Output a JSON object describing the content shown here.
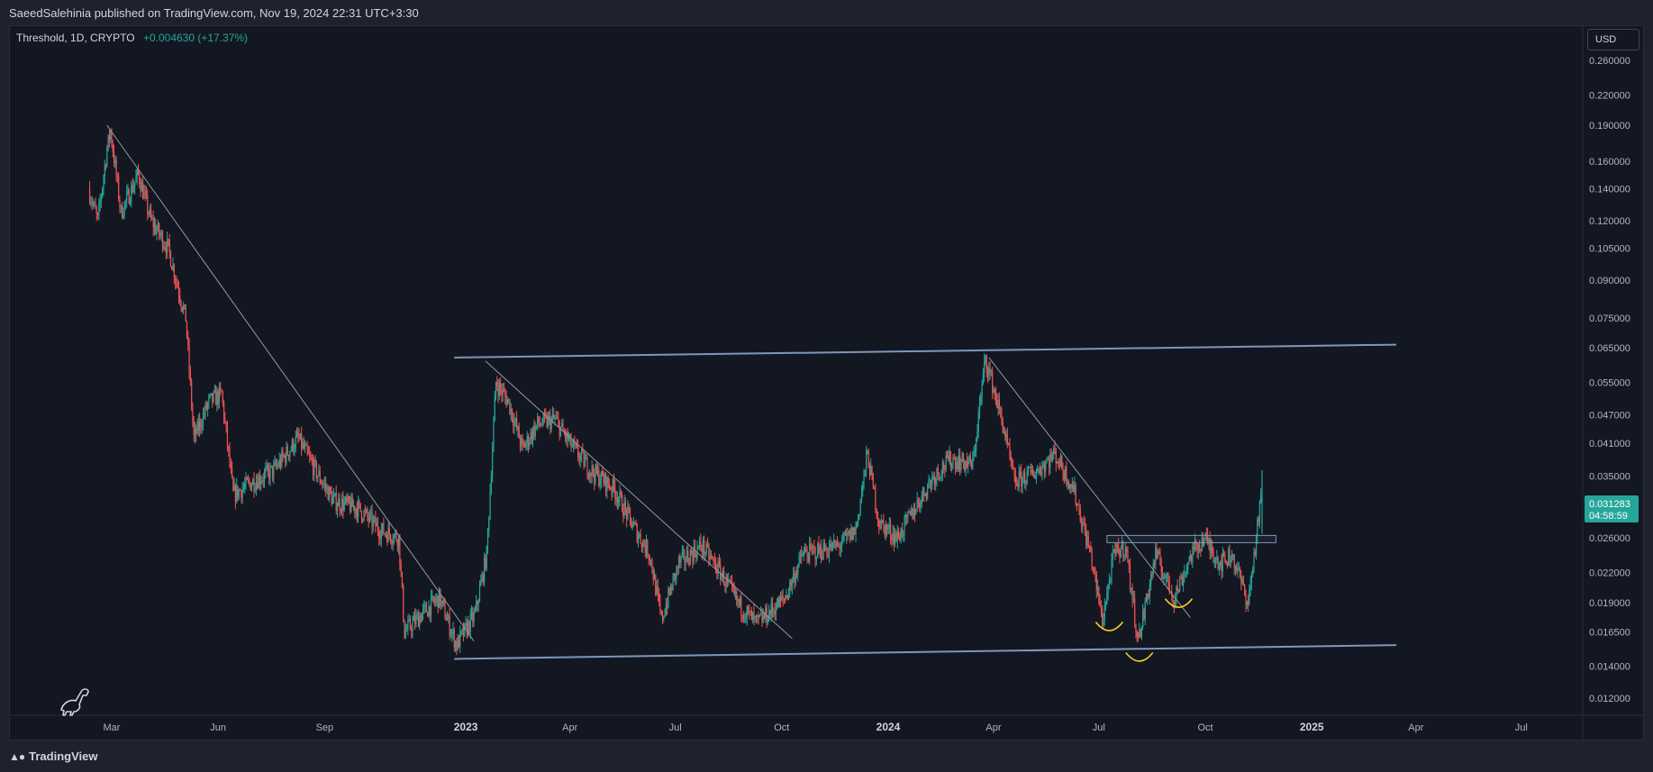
{
  "header": {
    "publish_line": "SaeedSalehinia published on TradingView.com, Nov 19, 2024 22:31 UTC+3:30"
  },
  "legend": {
    "symbol_line": "Threshold, 1D, CRYPTO",
    "change": "+0.004630 (+17.37%)"
  },
  "toolbar": {
    "currency": "USD"
  },
  "footer": {
    "brand": "TradingView"
  },
  "colors": {
    "background": "#131722",
    "up": "#26a69a",
    "down": "#ef5350",
    "channel": "#7e97b8",
    "trendline": "#9598a1",
    "arc": "#f7d31e"
  },
  "icons": [
    "dino-watermark-icon",
    "tradingview-logo-icon"
  ],
  "chart_data": {
    "type": "candlestick",
    "title": "Threshold, 1D, CRYPTO",
    "y_scale": "log",
    "currency": "USD",
    "ylim": [
      0.0115,
      0.28
    ],
    "y_ticks": [
      "0.260000",
      "0.220000",
      "0.190000",
      "0.160000",
      "0.140000",
      "0.120000",
      "0.105000",
      "0.090000",
      "0.075000",
      "0.065000",
      "0.055000",
      "0.047000",
      "0.041000",
      "0.035000",
      "0.026000",
      "0.022000",
      "0.019000",
      "0.016500",
      "0.014000",
      "0.012000"
    ],
    "x_ticks": [
      {
        "label": "Mar",
        "bold": false
      },
      {
        "label": "Jun",
        "bold": false
      },
      {
        "label": "Sep",
        "bold": false
      },
      {
        "label": "2023",
        "bold": true
      },
      {
        "label": "Apr",
        "bold": false
      },
      {
        "label": "Jul",
        "bold": false
      },
      {
        "label": "Oct",
        "bold": false
      },
      {
        "label": "2024",
        "bold": true
      },
      {
        "label": "Apr",
        "bold": false
      },
      {
        "label": "Jul",
        "bold": false
      },
      {
        "label": "Oct",
        "bold": false
      },
      {
        "label": "2025",
        "bold": true
      },
      {
        "label": "Apr",
        "bold": false
      },
      {
        "label": "Jul",
        "bold": false
      }
    ],
    "last_price": "0.031283",
    "countdown": "04:58:59",
    "price_path": [
      [
        "2022-02-10",
        0.14
      ],
      [
        "2022-02-18",
        0.12
      ],
      [
        "2022-02-26",
        0.17
      ],
      [
        "2022-03-01",
        0.185
      ],
      [
        "2022-03-10",
        0.125
      ],
      [
        "2022-03-25",
        0.15
      ],
      [
        "2022-04-05",
        0.12
      ],
      [
        "2022-04-20",
        0.105
      ],
      [
        "2022-05-05",
        0.075
      ],
      [
        "2022-05-12",
        0.042
      ],
      [
        "2022-05-25",
        0.05
      ],
      [
        "2022-06-05",
        0.052
      ],
      [
        "2022-06-15",
        0.032
      ],
      [
        "2022-07-01",
        0.034
      ],
      [
        "2022-07-20",
        0.036
      ],
      [
        "2022-08-10",
        0.042
      ],
      [
        "2022-08-25",
        0.036
      ],
      [
        "2022-09-10",
        0.031
      ],
      [
        "2022-10-01",
        0.03
      ],
      [
        "2022-10-20",
        0.027
      ],
      [
        "2022-11-05",
        0.026
      ],
      [
        "2022-11-10",
        0.0165
      ],
      [
        "2022-11-25",
        0.018
      ],
      [
        "2022-12-10",
        0.0195
      ],
      [
        "2022-12-25",
        0.0155
      ],
      [
        "2023-01-10",
        0.018
      ],
      [
        "2023-01-20",
        0.024
      ],
      [
        "2023-01-28",
        0.055
      ],
      [
        "2023-02-08",
        0.05
      ],
      [
        "2023-02-20",
        0.04
      ],
      [
        "2023-03-05",
        0.045
      ],
      [
        "2023-03-20",
        0.046
      ],
      [
        "2023-04-05",
        0.04
      ],
      [
        "2023-04-20",
        0.036
      ],
      [
        "2023-05-10",
        0.033
      ],
      [
        "2023-05-25",
        0.028
      ],
      [
        "2023-06-10",
        0.024
      ],
      [
        "2023-06-20",
        0.0175
      ],
      [
        "2023-07-05",
        0.023
      ],
      [
        "2023-07-25",
        0.025
      ],
      [
        "2023-08-10",
        0.022
      ],
      [
        "2023-08-25",
        0.019
      ],
      [
        "2023-09-10",
        0.0172
      ],
      [
        "2023-09-20",
        0.018
      ],
      [
        "2023-10-05",
        0.0195
      ],
      [
        "2023-10-20",
        0.024
      ],
      [
        "2023-11-05",
        0.0245
      ],
      [
        "2023-11-20",
        0.025
      ],
      [
        "2023-12-05",
        0.027
      ],
      [
        "2023-12-15",
        0.039
      ],
      [
        "2023-12-25",
        0.028
      ],
      [
        "2024-01-10",
        0.026
      ],
      [
        "2024-01-25",
        0.03
      ],
      [
        "2024-02-10",
        0.035
      ],
      [
        "2024-02-25",
        0.038
      ],
      [
        "2024-03-15",
        0.037
      ],
      [
        "2024-03-26",
        0.062
      ],
      [
        "2024-04-10",
        0.045
      ],
      [
        "2024-04-20",
        0.034
      ],
      [
        "2024-05-10",
        0.036
      ],
      [
        "2024-05-25",
        0.039
      ],
      [
        "2024-06-10",
        0.033
      ],
      [
        "2024-06-25",
        0.024
      ],
      [
        "2024-07-05",
        0.0175
      ],
      [
        "2024-07-15",
        0.024
      ],
      [
        "2024-07-25",
        0.025
      ],
      [
        "2024-08-05",
        0.0158
      ],
      [
        "2024-08-20",
        0.024
      ],
      [
        "2024-09-05",
        0.0195
      ],
      [
        "2024-09-20",
        0.024
      ],
      [
        "2024-10-01",
        0.026
      ],
      [
        "2024-10-15",
        0.023
      ],
      [
        "2024-10-25",
        0.024
      ],
      [
        "2024-11-08",
        0.019
      ],
      [
        "2024-11-19",
        0.031283
      ]
    ],
    "annotations": [
      {
        "type": "channel-line",
        "from": [
          "2022-12-22",
          0.0145
        ],
        "to": [
          "2025-03-15",
          0.0155
        ]
      },
      {
        "type": "channel-line",
        "from": [
          "2022-12-22",
          0.062
        ],
        "to": [
          "2025-03-15",
          0.066
        ]
      },
      {
        "type": "trendline",
        "from": [
          "2022-02-25",
          0.19
        ],
        "to": [
          "2023-01-08",
          0.0158
        ]
      },
      {
        "type": "trendline",
        "from": [
          "2023-01-18",
          0.061
        ],
        "to": [
          "2023-10-10",
          0.016
        ]
      },
      {
        "type": "trendline",
        "from": [
          "2024-03-28",
          0.062
        ],
        "to": [
          "2024-09-18",
          0.0177
        ]
      },
      {
        "type": "resistance-box",
        "from": [
          "2024-07-08",
          0.0263
        ],
        "to": [
          "2024-12-01",
          0.0254
        ]
      },
      {
        "type": "arc",
        "at": [
          "2024-07-10",
          0.0168
        ]
      },
      {
        "type": "arc",
        "at": [
          "2024-08-05",
          0.0145
        ]
      },
      {
        "type": "arc",
        "at": [
          "2024-09-08",
          0.0188
        ]
      }
    ]
  }
}
